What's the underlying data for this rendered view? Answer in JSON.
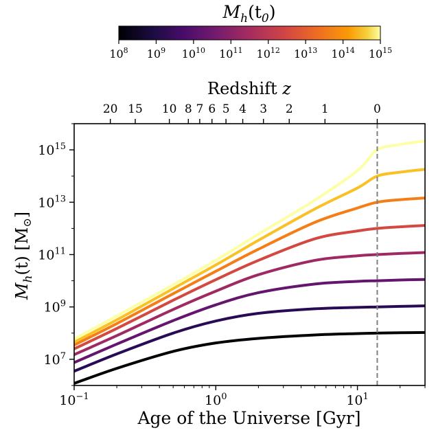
{
  "colorbar": {
    "label_main": "M",
    "label_sub": "h",
    "label_arg": "(t",
    "label_arg_sub": "0",
    "label_close": ")",
    "ticks": [
      {
        "base": "10",
        "exp": "8",
        "value": 8
      },
      {
        "base": "10",
        "exp": "9",
        "value": 9
      },
      {
        "base": "10",
        "exp": "10",
        "value": 10
      },
      {
        "base": "10",
        "exp": "11",
        "value": 11
      },
      {
        "base": "10",
        "exp": "12",
        "value": 12
      },
      {
        "base": "10",
        "exp": "13",
        "value": 13
      },
      {
        "base": "10",
        "exp": "14",
        "value": 14
      },
      {
        "base": "10",
        "exp": "15",
        "value": 15
      }
    ]
  },
  "chart_data": {
    "type": "line",
    "x_axis": {
      "label": "Age of the Universe [Gyr]",
      "scale": "log",
      "range": [
        0.1,
        30
      ],
      "ticks": [
        {
          "value": 0.1,
          "base": "10",
          "exp": "−1"
        },
        {
          "value": 1,
          "base": "10",
          "exp": "0"
        },
        {
          "value": 10,
          "base": "10",
          "exp": "1"
        }
      ]
    },
    "top_axis": {
      "label": "Redshift",
      "label_var": "z",
      "ticks": [
        {
          "label": "20",
          "age_gyr": 0.18
        },
        {
          "label": "15",
          "age_gyr": 0.27
        },
        {
          "label": "10",
          "age_gyr": 0.47
        },
        {
          "label": "8",
          "age_gyr": 0.64
        },
        {
          "label": "7",
          "age_gyr": 0.77
        },
        {
          "label": "6",
          "age_gyr": 0.94
        },
        {
          "label": "5",
          "age_gyr": 1.18
        },
        {
          "label": "4",
          "age_gyr": 1.55
        },
        {
          "label": "3",
          "age_gyr": 2.17
        },
        {
          "label": "2",
          "age_gyr": 3.3
        },
        {
          "label": "1",
          "age_gyr": 5.9
        },
        {
          "label": "0",
          "age_gyr": 13.8
        }
      ]
    },
    "y_axis": {
      "label_main": "M",
      "label_sub": "h",
      "label_rest": "(t) [M",
      "label_sun": "⊙",
      "label_close": "]",
      "scale": "log",
      "range": [
        1000000.0,
        1e+16
      ],
      "ticks": [
        {
          "value": 10000000.0,
          "base": "10",
          "exp": "7"
        },
        {
          "value": 1000000000.0,
          "base": "10",
          "exp": "9"
        },
        {
          "value": 100000000000.0,
          "base": "10",
          "exp": "11"
        },
        {
          "value": 10000000000000.0,
          "base": "10",
          "exp": "13"
        },
        {
          "value": 1000000000000000.0,
          "base": "10",
          "exp": "15"
        }
      ]
    },
    "vertical_line": {
      "x": 13.8,
      "style": "dashed",
      "color": "#808080"
    },
    "series": [
      {
        "log_M0": 8,
        "color": "#000004",
        "x": [
          0.1,
          0.2,
          0.5,
          1,
          2,
          5,
          10,
          13.8,
          20,
          30
        ],
        "y": [
          1200000.0,
          4500000.0,
          20000000.0,
          42000000.0,
          63000000.0,
          85000000.0,
          96000000.0,
          100000000.0,
          103000000.0,
          106000000.0
        ]
      },
      {
        "log_M0": 9,
        "color": "#280b54",
        "x": [
          0.1,
          0.2,
          0.5,
          1,
          2,
          5,
          10,
          13.8,
          20,
          30
        ],
        "y": [
          3500000.0,
          16000000.0,
          100000000.0,
          290000000.0,
          570000000.0,
          850000000.0,
          960000000.0,
          1000000000.0,
          1050000000.0,
          1100000000.0
        ]
      },
      {
        "log_M0": 10,
        "color": "#65156e",
        "x": [
          0.1,
          0.2,
          0.5,
          1,
          2,
          5,
          10,
          13.8,
          20,
          30
        ],
        "y": [
          7500000.0,
          38000000.0,
          300000000.0,
          1200000000.0,
          3500000000.0,
          7500000000.0,
          9500000000.0,
          10000000000.0,
          10700000000.0,
          11200000000.0
        ]
      },
      {
        "log_M0": 11,
        "color": "#9f2a63",
        "x": [
          0.1,
          0.2,
          0.5,
          1,
          2,
          5,
          10,
          13.8,
          20,
          30
        ],
        "y": [
          15000000.0,
          80000000.0,
          800000000.0,
          4000000000.0,
          17000000000.0,
          60000000000.0,
          90000000000.0,
          100000000000.0,
          110000000000.0,
          120000000000.0
        ]
      },
      {
        "log_M0": 12,
        "color": "#d44842",
        "x": [
          0.1,
          0.2,
          0.5,
          1,
          2,
          5,
          10,
          13.8,
          20,
          30
        ],
        "y": [
          25000000.0,
          150000000.0,
          1800000000.0,
          11000000000.0,
          60000000000.0,
          400000000000.0,
          800000000000.0,
          1000000000000.0,
          1150000000000.0,
          1300000000000.0
        ]
      },
      {
        "log_M0": 13,
        "color": "#f57d15",
        "x": [
          0.1,
          0.2,
          0.5,
          1,
          2,
          5,
          10,
          13.8,
          20,
          30
        ],
        "y": [
          35000000.0,
          230000000.0,
          3200000000.0,
          23000000000.0,
          160000000000.0,
          1700000000000.0,
          6000000000000.0,
          10000000000000.0,
          12500000000000.0,
          14500000000000.0
        ]
      },
      {
        "log_M0": 14,
        "color": "#fac127",
        "x": [
          0.1,
          0.2,
          0.5,
          1,
          2,
          5,
          10,
          13.8,
          20,
          30
        ],
        "y": [
          45000000.0,
          320000000.0,
          5000000000.0,
          40000000000.0,
          350000000000.0,
          5500000000000.0,
          35000000000000.0,
          100000000000000.0,
          140000000000000.0,
          180000000000000.0
        ]
      },
      {
        "log_M0": 15,
        "color": "#fcffa4",
        "x": [
          0.1,
          0.2,
          0.5,
          1,
          2,
          5,
          10,
          13.8,
          20,
          30
        ],
        "y": [
          60000000.0,
          450000000.0,
          7000000000.0,
          60000000000.0,
          600000000000.0,
          12000000000000.0,
          160000000000000.0,
          1000000000000000.0,
          1600000000000000.0,
          2200000000000000.0
        ]
      }
    ]
  }
}
